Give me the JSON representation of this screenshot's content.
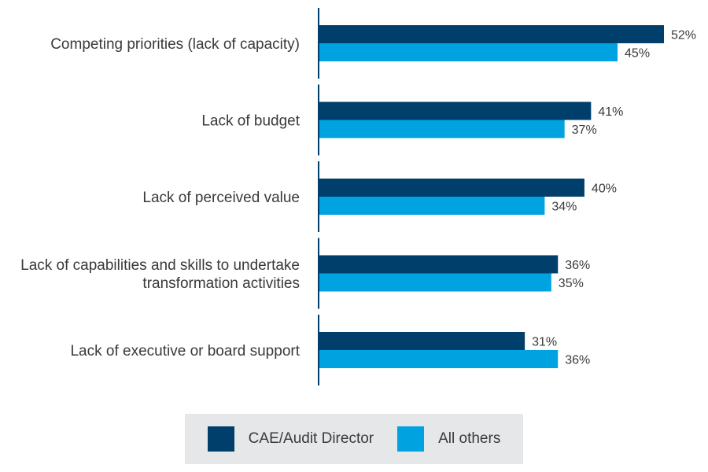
{
  "chart_data": {
    "type": "bar",
    "orientation": "horizontal",
    "categories": [
      [
        "Competing priorities (lack of capacity)"
      ],
      [
        "Lack of budget"
      ],
      [
        "Lack of perceived value"
      ],
      [
        "Lack of capabilities and skills to undertake",
        "transformation activities"
      ],
      [
        "Lack of executive or board support"
      ]
    ],
    "series": [
      {
        "name": "CAE/Audit Director",
        "color": "#003f6b",
        "values": [
          52,
          41,
          40,
          36,
          31
        ]
      },
      {
        "name": "All others",
        "color": "#00a3e0",
        "values": [
          45,
          37,
          34,
          35,
          36
        ]
      }
    ],
    "value_suffix": "%",
    "xlim": [
      0,
      60
    ],
    "grid": false,
    "legend_position": "bottom"
  },
  "legend": {
    "series1_label": "CAE/Audit Director",
    "series2_label": "All others"
  }
}
